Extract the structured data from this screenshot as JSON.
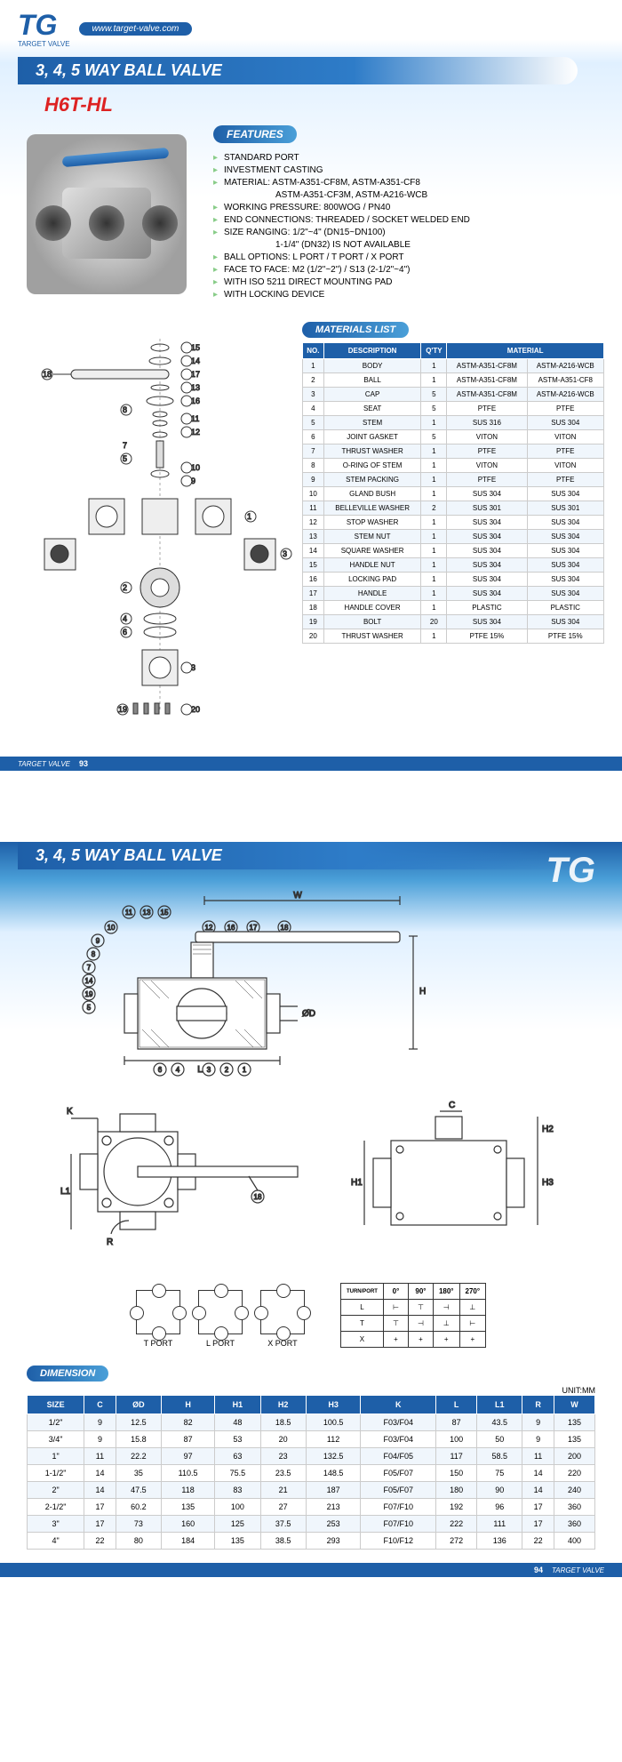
{
  "brand": {
    "logo": "TG",
    "logo_sub": "TARGET VALVE",
    "url": "www.target-valve.com"
  },
  "title": "3, 4, 5 WAY BALL VALVE",
  "model": "H6T-HL",
  "features": {
    "header": "FEATURES",
    "items": [
      "STANDARD PORT",
      "INVESTMENT CASTING",
      "MATERIAL: ASTM-A351-CF8M, ASTM-A351-CF8",
      "ASTM-A351-CF3M, ASTM-A216-WCB",
      "WORKING PRESSURE: 800WOG / PN40",
      "END CONNECTIONS: THREADED / SOCKET WELDED END",
      "SIZE RANGING: 1/2\"~4\" (DN15~DN100)",
      "1-1/4\" (DN32) IS NOT AVAILABLE",
      "BALL OPTIONS: L PORT / T PORT / X PORT",
      "FACE TO FACE: M2 (1/2\"~2\") / S13 (2-1/2\"~4\")",
      "WITH ISO 5211 DIRECT MOUNTING PAD",
      "WITH LOCKING DEVICE"
    ]
  },
  "materials": {
    "header": "MATERIALS LIST",
    "columns": [
      "NO.",
      "DESCRIPTION",
      "Q'TY",
      "MATERIAL"
    ],
    "mat_colspan": 2,
    "rows": [
      [
        "1",
        "BODY",
        "1",
        "ASTM-A351-CF8M",
        "ASTM-A216-WCB"
      ],
      [
        "2",
        "BALL",
        "1",
        "ASTM-A351-CF8M",
        "ASTM-A351-CF8"
      ],
      [
        "3",
        "CAP",
        "5",
        "ASTM-A351-CF8M",
        "ASTM-A216-WCB"
      ],
      [
        "4",
        "SEAT",
        "5",
        "PTFE",
        "PTFE"
      ],
      [
        "5",
        "STEM",
        "1",
        "SUS 316",
        "SUS 304"
      ],
      [
        "6",
        "JOINT GASKET",
        "5",
        "VITON",
        "VITON"
      ],
      [
        "7",
        "THRUST WASHER",
        "1",
        "PTFE",
        "PTFE"
      ],
      [
        "8",
        "O-RING OF STEM",
        "1",
        "VITON",
        "VITON"
      ],
      [
        "9",
        "STEM PACKING",
        "1",
        "PTFE",
        "PTFE"
      ],
      [
        "10",
        "GLAND BUSH",
        "1",
        "SUS 304",
        "SUS 304"
      ],
      [
        "11",
        "BELLEVILLE WASHER",
        "2",
        "SUS 301",
        "SUS 301"
      ],
      [
        "12",
        "STOP WASHER",
        "1",
        "SUS 304",
        "SUS 304"
      ],
      [
        "13",
        "STEM NUT",
        "1",
        "SUS 304",
        "SUS 304"
      ],
      [
        "14",
        "SQUARE WASHER",
        "1",
        "SUS 304",
        "SUS 304"
      ],
      [
        "15",
        "HANDLE NUT",
        "1",
        "SUS 304",
        "SUS 304"
      ],
      [
        "16",
        "LOCKING PAD",
        "1",
        "SUS 304",
        "SUS 304"
      ],
      [
        "17",
        "HANDLE",
        "1",
        "SUS 304",
        "SUS 304"
      ],
      [
        "18",
        "HANDLE COVER",
        "1",
        "PLASTIC",
        "PLASTIC"
      ],
      [
        "19",
        "BOLT",
        "20",
        "SUS 304",
        "SUS 304"
      ],
      [
        "20",
        "THRUST WASHER",
        "1",
        "PTFE 15%",
        "PTFE 15%"
      ]
    ]
  },
  "page1_footer": {
    "brand": "TARGET VALVE",
    "num": "93"
  },
  "page2_footer": {
    "brand": "TARGET VALVE",
    "num": "94"
  },
  "port_types": [
    "T PORT",
    "L PORT",
    "X PORT"
  ],
  "rotation": {
    "header": [
      "TURN/PORT",
      "0°",
      "90°",
      "180°",
      "270°"
    ],
    "rows": [
      [
        "L",
        "⊢",
        "⊤",
        "⊣",
        "⊥"
      ],
      [
        "T",
        "⊤",
        "⊣",
        "⊥",
        "⊢"
      ],
      [
        "X",
        "+",
        "+",
        "+",
        "+"
      ]
    ]
  },
  "dimensions": {
    "header": "DIMENSION",
    "unit": "UNIT:MM",
    "columns": [
      "SIZE",
      "C",
      "ØD",
      "H",
      "H1",
      "H2",
      "H3",
      "K",
      "L",
      "L1",
      "R",
      "W"
    ],
    "rows": [
      [
        "1/2\"",
        "9",
        "12.5",
        "82",
        "48",
        "18.5",
        "100.5",
        "F03/F04",
        "87",
        "43.5",
        "9",
        "135"
      ],
      [
        "3/4\"",
        "9",
        "15.8",
        "87",
        "53",
        "20",
        "112",
        "F03/F04",
        "100",
        "50",
        "9",
        "135"
      ],
      [
        "1\"",
        "11",
        "22.2",
        "97",
        "63",
        "23",
        "132.5",
        "F04/F05",
        "117",
        "58.5",
        "11",
        "200"
      ],
      [
        "1-1/2\"",
        "14",
        "35",
        "110.5",
        "75.5",
        "23.5",
        "148.5",
        "F05/F07",
        "150",
        "75",
        "14",
        "220"
      ],
      [
        "2\"",
        "14",
        "47.5",
        "118",
        "83",
        "21",
        "187",
        "F05/F07",
        "180",
        "90",
        "14",
        "240"
      ],
      [
        "2-1/2\"",
        "17",
        "60.2",
        "135",
        "100",
        "27",
        "213",
        "F07/F10",
        "192",
        "96",
        "17",
        "360"
      ],
      [
        "3\"",
        "17",
        "73",
        "160",
        "125",
        "37.5",
        "253",
        "F07/F10",
        "222",
        "111",
        "17",
        "360"
      ],
      [
        "4\"",
        "22",
        "80",
        "184",
        "135",
        "38.5",
        "293",
        "F10/F12",
        "272",
        "136",
        "22",
        "400"
      ]
    ]
  },
  "dim_labels": [
    "W",
    "H",
    "ØD",
    "L",
    "K",
    "L1",
    "R",
    "C",
    "H1",
    "H2",
    "H3"
  ],
  "callouts_top": [
    "10",
    "11",
    "13",
    "15",
    "12",
    "16",
    "17",
    "18",
    "9",
    "8",
    "7",
    "14",
    "19",
    "5"
  ],
  "callouts_bottom": [
    "6",
    "4",
    "3",
    "2",
    "1",
    "18"
  ]
}
